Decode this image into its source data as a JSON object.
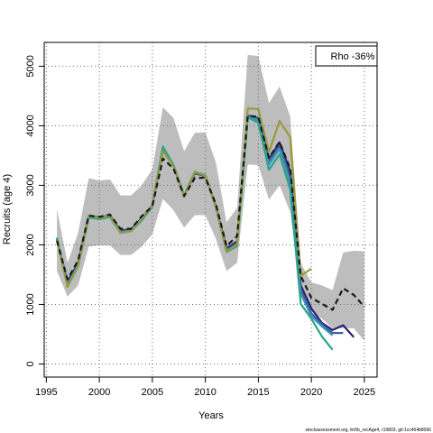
{
  "chart_data": {
    "type": "line",
    "xlabel": "Years",
    "ylabel": "Recruits (age 4)",
    "xlim": [
      1994.8,
      2026.2
    ],
    "ylim": [
      -220,
      5400
    ],
    "x_ticks": [
      1995,
      2000,
      2005,
      2010,
      2015,
      2020,
      2025
    ],
    "y_ticks": [
      0,
      1000,
      2000,
      3000,
      4000,
      5000
    ],
    "grid": true,
    "grid_style": "dotted",
    "legend": {
      "text": "Rho -36%",
      "placement": "top-right"
    },
    "footer": "stockassessment.org, lin5b_recAge4, r19803, git:1cc464b8066",
    "confidence_band": {
      "color": "#bdbdbd",
      "x": [
        1996,
        1997,
        1998,
        1999,
        2000,
        2001,
        2002,
        2003,
        2004,
        2005,
        2006,
        2007,
        2008,
        2009,
        2010,
        2011,
        2012,
        2013,
        2014,
        2015,
        2016,
        2017,
        2018,
        2019,
        2020,
        2021,
        2022,
        2023,
        2024,
        2025
      ],
      "upper": [
        2600,
        1700,
        2200,
        3120,
        3080,
        3100,
        2830,
        2830,
        3000,
        3270,
        4310,
        4130,
        3570,
        3880,
        3890,
        3380,
        2380,
        2620,
        5190,
        5170,
        4380,
        4660,
        4160,
        1690,
        1370,
        1320,
        1240,
        1870,
        1900,
        1890
      ],
      "lower": [
        1560,
        1130,
        1320,
        1970,
        1990,
        1990,
        1830,
        1830,
        1970,
        2180,
        2770,
        2580,
        2290,
        2500,
        2500,
        2100,
        1560,
        1700,
        3350,
        3340,
        2760,
        3000,
        2550,
        1280,
        890,
        760,
        600,
        600,
        600,
        390
      ]
    },
    "series": [
      {
        "color": "#1a1a1a",
        "dashed": true,
        "x": [
          1996,
          1997,
          1998,
          1999,
          2000,
          2001,
          2002,
          2003,
          2004,
          2005,
          2006,
          2007,
          2008,
          2009,
          2010,
          2011,
          2012,
          2013,
          2014,
          2015,
          2016,
          2017,
          2018,
          2019,
          2020,
          2021,
          2022,
          2023,
          2024,
          2025
        ],
        "values": [
          2070,
          1420,
          1740,
          2490,
          2470,
          2510,
          2270,
          2270,
          2480,
          2650,
          3450,
          3280,
          2820,
          3120,
          3130,
          2680,
          1980,
          2150,
          4170,
          4150,
          3460,
          3730,
          3280,
          1480,
          1110,
          1010,
          910,
          1270,
          1160,
          960
        ]
      },
      {
        "color": "#2e1e7a",
        "dashed": false,
        "x": [
          1996,
          1997,
          1998,
          1999,
          2000,
          2001,
          2002,
          2003,
          2004,
          2005,
          2006,
          2007,
          2008,
          2009,
          2010,
          2011,
          2012,
          2013,
          2014,
          2015,
          2016,
          2017,
          2018,
          2019,
          2020,
          2021,
          2022,
          2023,
          2024
        ],
        "values": [
          2090,
          1380,
          1700,
          2490,
          2460,
          2500,
          2240,
          2260,
          2450,
          2660,
          3620,
          3320,
          2820,
          3200,
          3160,
          2650,
          1940,
          2060,
          4170,
          4130,
          3440,
          3720,
          3240,
          1320,
          930,
          690,
          570,
          650,
          450
        ]
      },
      {
        "color": "#3a5f9e",
        "dashed": false,
        "x": [
          1996,
          1997,
          1998,
          1999,
          2000,
          2001,
          2002,
          2003,
          2004,
          2005,
          2006,
          2007,
          2008,
          2009,
          2010,
          2011,
          2012,
          2013,
          2014,
          2015,
          2016,
          2017,
          2018,
          2019,
          2020,
          2021,
          2022,
          2023
        ],
        "values": [
          2100,
          1350,
          1680,
          2480,
          2450,
          2490,
          2230,
          2250,
          2430,
          2650,
          3630,
          3330,
          2820,
          3210,
          3160,
          2640,
          1920,
          2030,
          4160,
          4120,
          3410,
          3670,
          3150,
          1240,
          850,
          670,
          520,
          520
        ]
      },
      {
        "color": "#3b97b6",
        "dashed": false,
        "x": [
          1996,
          1997,
          1998,
          1999,
          2000,
          2001,
          2002,
          2003,
          2004,
          2005,
          2006,
          2007,
          2008,
          2009,
          2010,
          2011,
          2012,
          2013,
          2014,
          2015,
          2016,
          2017,
          2018,
          2019,
          2020,
          2021,
          2022
        ],
        "values": [
          2110,
          1330,
          1660,
          2470,
          2440,
          2480,
          2210,
          2240,
          2420,
          2650,
          3640,
          3340,
          2830,
          3220,
          3170,
          2630,
          1900,
          2000,
          4150,
          4090,
          3350,
          3610,
          3050,
          1180,
          800,
          630,
          480
        ]
      },
      {
        "color": "#2aa48a",
        "dashed": false,
        "x": [
          1996,
          1997,
          1998,
          1999,
          2000,
          2001,
          2002,
          2003,
          2004,
          2005,
          2006,
          2007,
          2008,
          2009,
          2010,
          2011,
          2012,
          2013,
          2014,
          2015,
          2016,
          2017,
          2018,
          2019,
          2020,
          2021,
          2022
        ],
        "values": [
          2120,
          1300,
          1640,
          2460,
          2430,
          2470,
          2200,
          2230,
          2410,
          2640,
          3650,
          3340,
          2830,
          3230,
          3170,
          2620,
          1880,
          1980,
          4140,
          4050,
          3260,
          3520,
          2940,
          1010,
          760,
          460,
          240
        ]
      },
      {
        "color": "#9a9a3c",
        "dashed": false,
        "x": [
          1996,
          1997,
          1998,
          1999,
          2000,
          2001,
          2002,
          2003,
          2004,
          2005,
          2006,
          2007,
          2008,
          2009,
          2010,
          2011,
          2012,
          2013,
          2014,
          2015,
          2016,
          2017,
          2018,
          2019,
          2020
        ],
        "values": [
          2080,
          1290,
          1650,
          2490,
          2450,
          2500,
          2200,
          2230,
          2440,
          2660,
          3570,
          3320,
          2810,
          3230,
          3160,
          2640,
          1890,
          2010,
          4290,
          4280,
          3560,
          4080,
          3810,
          1480,
          1600
        ]
      }
    ]
  }
}
